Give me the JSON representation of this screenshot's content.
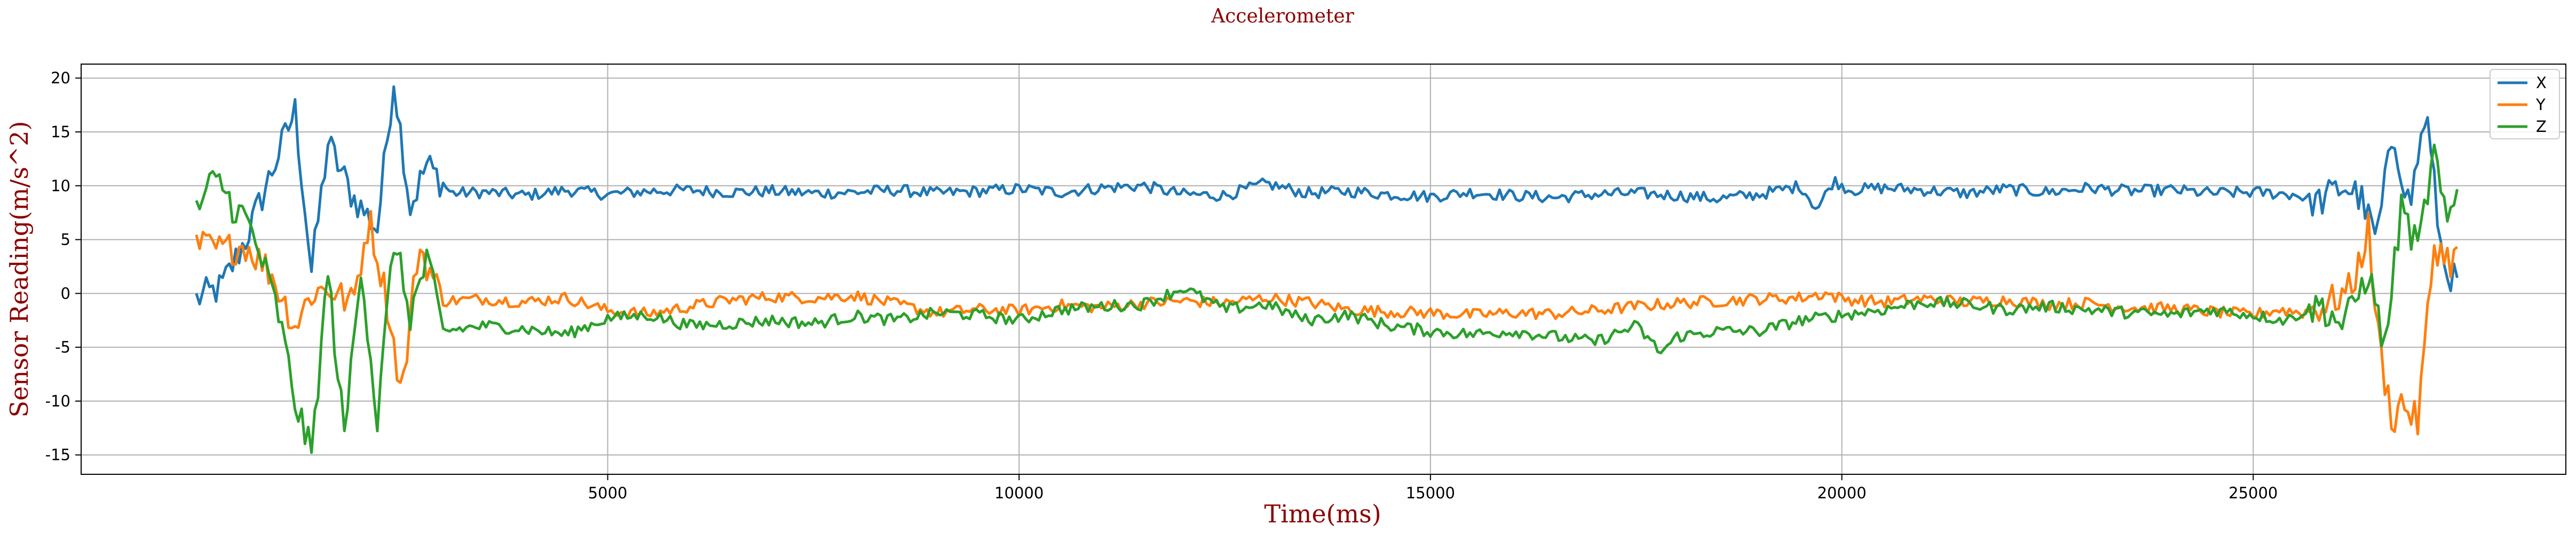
{
  "chart_data": {
    "type": "line",
    "title": "Accelerometer",
    "xlabel": "Time(ms)",
    "ylabel": "Sensor Reading(m/s^2)",
    "xlim": [
      -1400,
      28800
    ],
    "ylim": [
      -16.8,
      21.3
    ],
    "xticks": [
      5000,
      10000,
      15000,
      20000,
      25000
    ],
    "yticks": [
      -15,
      -10,
      -5,
      0,
      5,
      10,
      15,
      20
    ],
    "grid": true,
    "legend": "top-right",
    "colors": {
      "X": "#1f77b4",
      "Y": "#ff7f0e",
      "Z": "#2ca02c"
    },
    "sample_interval_ms": 40,
    "series": [
      {
        "name": "X",
        "x": [
          0,
          300,
          600,
          900,
          1200,
          1400,
          1600,
          1900,
          2200,
          2400,
          2600,
          2800,
          3100,
          3500,
          4000,
          4500,
          5000,
          5500,
          6000,
          6500,
          7000,
          7500,
          8000,
          8500,
          9000,
          9500,
          10000,
          10500,
          11000,
          11500,
          12000,
          12500,
          13000,
          13500,
          14000,
          14500,
          15000,
          15500,
          16000,
          16500,
          17000,
          17500,
          18000,
          18500,
          19000,
          19500,
          19700,
          19900,
          20100,
          20500,
          21000,
          21500,
          22000,
          22500,
          23000,
          23500,
          24000,
          24500,
          25000,
          25500,
          25800,
          26100,
          26300,
          26500,
          26700,
          26900,
          27100,
          27300,
          27500
        ],
        "y": [
          -0.5,
          0.5,
          5.0,
          11.0,
          17.0,
          2.0,
          14.0,
          9.0,
          6.0,
          20.0,
          8.0,
          12.0,
          9.3,
          9.4,
          9.1,
          9.6,
          9.2,
          9.5,
          9.6,
          9.4,
          9.5,
          9.3,
          9.4,
          9.6,
          9.3,
          9.5,
          9.7,
          9.4,
          9.8,
          10.0,
          9.2,
          9.1,
          10.2,
          9.3,
          9.5,
          9.2,
          9.0,
          9.4,
          9.1,
          8.9,
          9.2,
          9.3,
          9.1,
          8.8,
          9.2,
          10.0,
          7.8,
          10.5,
          9.6,
          9.8,
          9.6,
          9.3,
          9.7,
          9.4,
          9.8,
          9.5,
          9.6,
          9.3,
          9.4,
          9.2,
          8.5,
          10.0,
          9.0,
          5.0,
          15.0,
          8.0,
          17.0,
          3.0,
          0.5
        ]
      },
      {
        "name": "Y",
        "x": [
          0,
          300,
          600,
          900,
          1200,
          1400,
          1600,
          1900,
          2100,
          2300,
          2500,
          2700,
          3000,
          3500,
          4000,
          4500,
          5000,
          5500,
          6000,
          6500,
          7000,
          7500,
          8000,
          8500,
          9000,
          9500,
          10000,
          10500,
          11000,
          11500,
          12000,
          12500,
          13000,
          13500,
          14000,
          14500,
          15000,
          15500,
          16000,
          16500,
          17000,
          17500,
          18000,
          18500,
          19000,
          19500,
          19800,
          20000,
          20500,
          21000,
          21500,
          22000,
          22500,
          23000,
          23500,
          24000,
          24500,
          25000,
          25300,
          25600,
          25900,
          26200,
          26400,
          26500,
          26600,
          26700,
          26800,
          27000,
          27200,
          27400,
          27500
        ],
        "y": [
          4.5,
          4.0,
          4.5,
          2.0,
          -3.0,
          0.0,
          0.5,
          -1.0,
          7.0,
          0.0,
          -9.5,
          4.5,
          -0.7,
          -0.5,
          -0.8,
          -0.4,
          -1.6,
          -1.9,
          -1.2,
          -0.6,
          -0.3,
          -0.4,
          -0.2,
          -1.0,
          -1.8,
          -1.5,
          -1.6,
          -1.1,
          -1.3,
          -0.9,
          -0.7,
          -0.9,
          -0.4,
          -0.8,
          -1.5,
          -1.7,
          -1.8,
          -2.0,
          -1.8,
          -1.9,
          -1.6,
          -1.2,
          -0.9,
          -0.7,
          -0.5,
          -0.4,
          0.0,
          -0.5,
          -0.8,
          -0.5,
          -0.8,
          -0.6,
          -1.0,
          -0.9,
          -1.3,
          -1.4,
          -1.7,
          -2.0,
          -1.5,
          -1.8,
          -1.0,
          0.5,
          6.0,
          -3.0,
          -8.0,
          -12.0,
          -10.0,
          -12.0,
          4.5,
          3.0,
          4.0
        ]
      },
      {
        "name": "Z",
        "x": [
          0,
          150,
          300,
          450,
          600,
          800,
          1000,
          1200,
          1400,
          1600,
          1800,
          2000,
          2200,
          2400,
          2600,
          2800,
          3000,
          3500,
          4000,
          4500,
          5000,
          5500,
          6000,
          6500,
          7000,
          7500,
          8000,
          8500,
          9000,
          9500,
          10000,
          10500,
          11000,
          11500,
          12000,
          12500,
          13000,
          13500,
          14000,
          14500,
          15000,
          15500,
          16000,
          16500,
          17000,
          17500,
          17800,
          18000,
          18500,
          19000,
          19500,
          20000,
          20500,
          21000,
          21500,
          22000,
          22500,
          23000,
          23500,
          24000,
          24500,
          25000,
          25400,
          25800,
          26100,
          26400,
          26600,
          26800,
          27000,
          27200,
          27350,
          27500
        ],
        "y": [
          7.5,
          10.0,
          10.3,
          8.0,
          7.0,
          3.0,
          -2.0,
          -10.0,
          -15.0,
          2.0,
          -13.5,
          3.0,
          -12.0,
          5.0,
          -2.0,
          3.0,
          -3.5,
          -3.0,
          -3.3,
          -3.8,
          -2.3,
          -2.0,
          -3.0,
          -2.8,
          -2.5,
          -2.8,
          -2.1,
          -2.5,
          -1.8,
          -2.0,
          -2.5,
          -1.5,
          -1.2,
          -1.0,
          0.5,
          -1.5,
          -1.0,
          -2.5,
          -2.0,
          -3.0,
          -3.5,
          -3.8,
          -3.5,
          -4.0,
          -4.5,
          -3.0,
          -5.5,
          -4.0,
          -3.5,
          -3.5,
          -2.5,
          -2.0,
          -1.5,
          -0.8,
          -1.0,
          -1.5,
          -1.2,
          -1.5,
          -1.8,
          -2.0,
          -1.5,
          -2.0,
          -2.5,
          -1.0,
          -3.0,
          2.0,
          -5.0,
          8.0,
          4.0,
          13.0,
          6.0,
          10.0
        ]
      }
    ]
  }
}
